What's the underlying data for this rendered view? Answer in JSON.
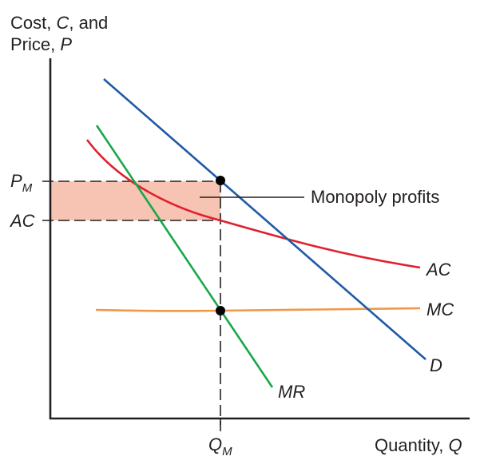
{
  "y_axis": {
    "line1_prefix": "Cost, ",
    "line1_var": "C",
    "line1_suffix": ", and",
    "line2_prefix": "Price, ",
    "line2_var": "P"
  },
  "x_axis": {
    "prefix": "Quantity, ",
    "var": "Q"
  },
  "price_tick": {
    "main": "P",
    "sub": "M"
  },
  "ac_tick": "AC",
  "quantity_tick": {
    "main": "Q",
    "sub": "M"
  },
  "annotation": "Monopoly profits",
  "curve_labels": {
    "ac": "AC",
    "mc": "MC",
    "d": "D",
    "mr": "MR"
  },
  "colors": {
    "demand": "#1f5aa6",
    "marginal_revenue": "#1aa64a",
    "average_cost": "#e0202e",
    "marginal_cost": "#f0974a",
    "profit_area": "#f7c3b2",
    "axes": "#231f20"
  }
}
